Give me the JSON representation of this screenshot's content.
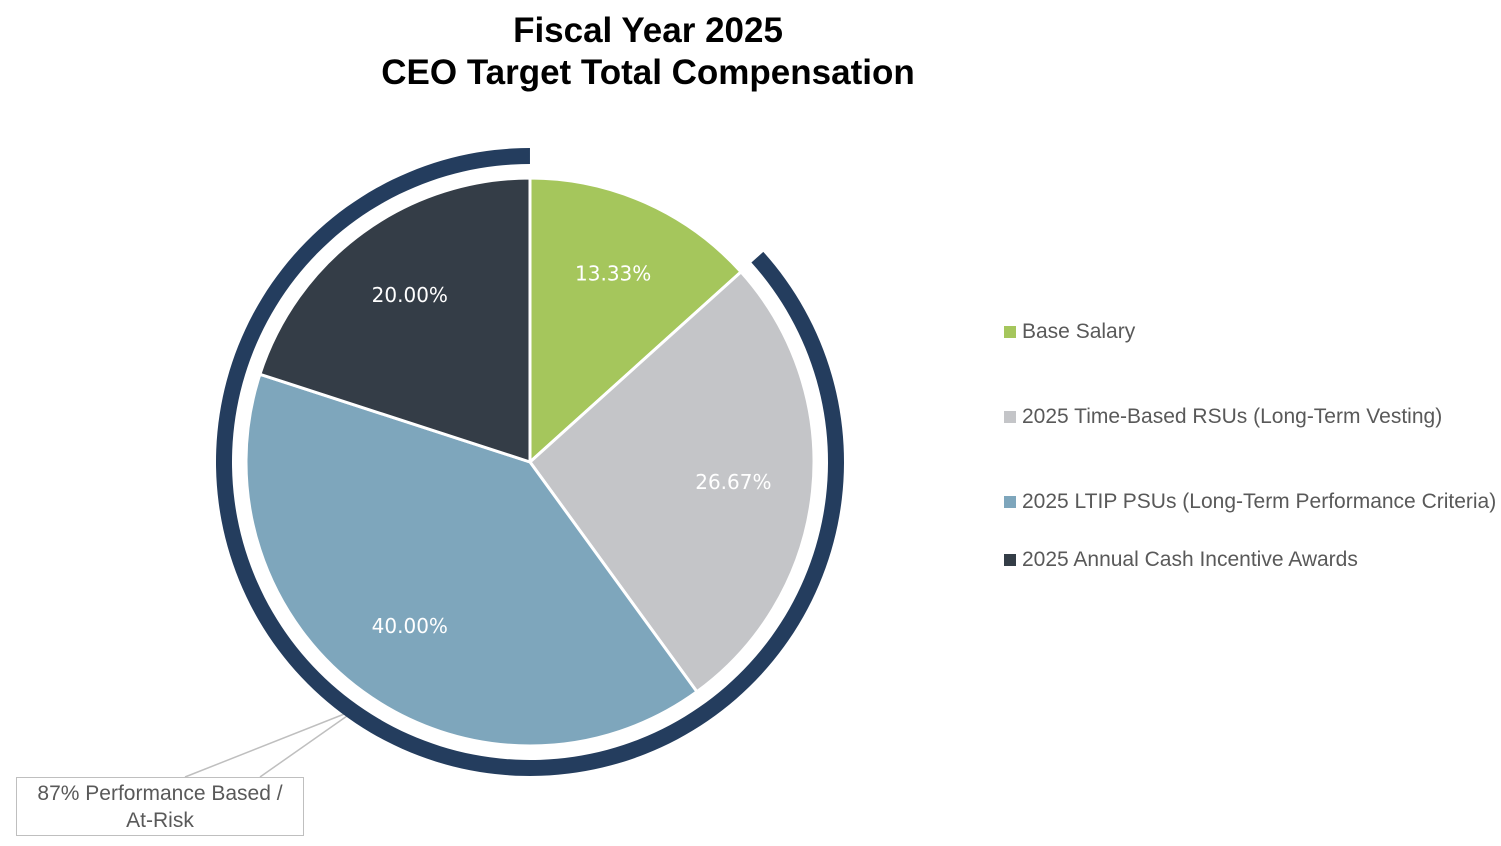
{
  "chart_data": {
    "type": "pie",
    "title": [
      "Fiscal Year 2025",
      "CEO Target Total Compensation"
    ],
    "categories": [
      "Base Salary",
      "2025 Time-Based RSUs (Long-Term Vesting)",
      "2025 LTIP PSUs (Long-Term Performance Criteria)",
      "2025 Annual Cash Incentive Awards"
    ],
    "values": [
      13.33,
      26.67,
      40.0,
      20.0
    ],
    "value_labels": [
      "13.33%",
      "26.67%",
      "40.00%",
      "20.00%"
    ],
    "colors": [
      "#a5c65c",
      "#c4c5c8",
      "#7ea6bc",
      "#343d47"
    ],
    "annotation": "87% Performance Based / At-Risk",
    "legend": "right"
  }
}
